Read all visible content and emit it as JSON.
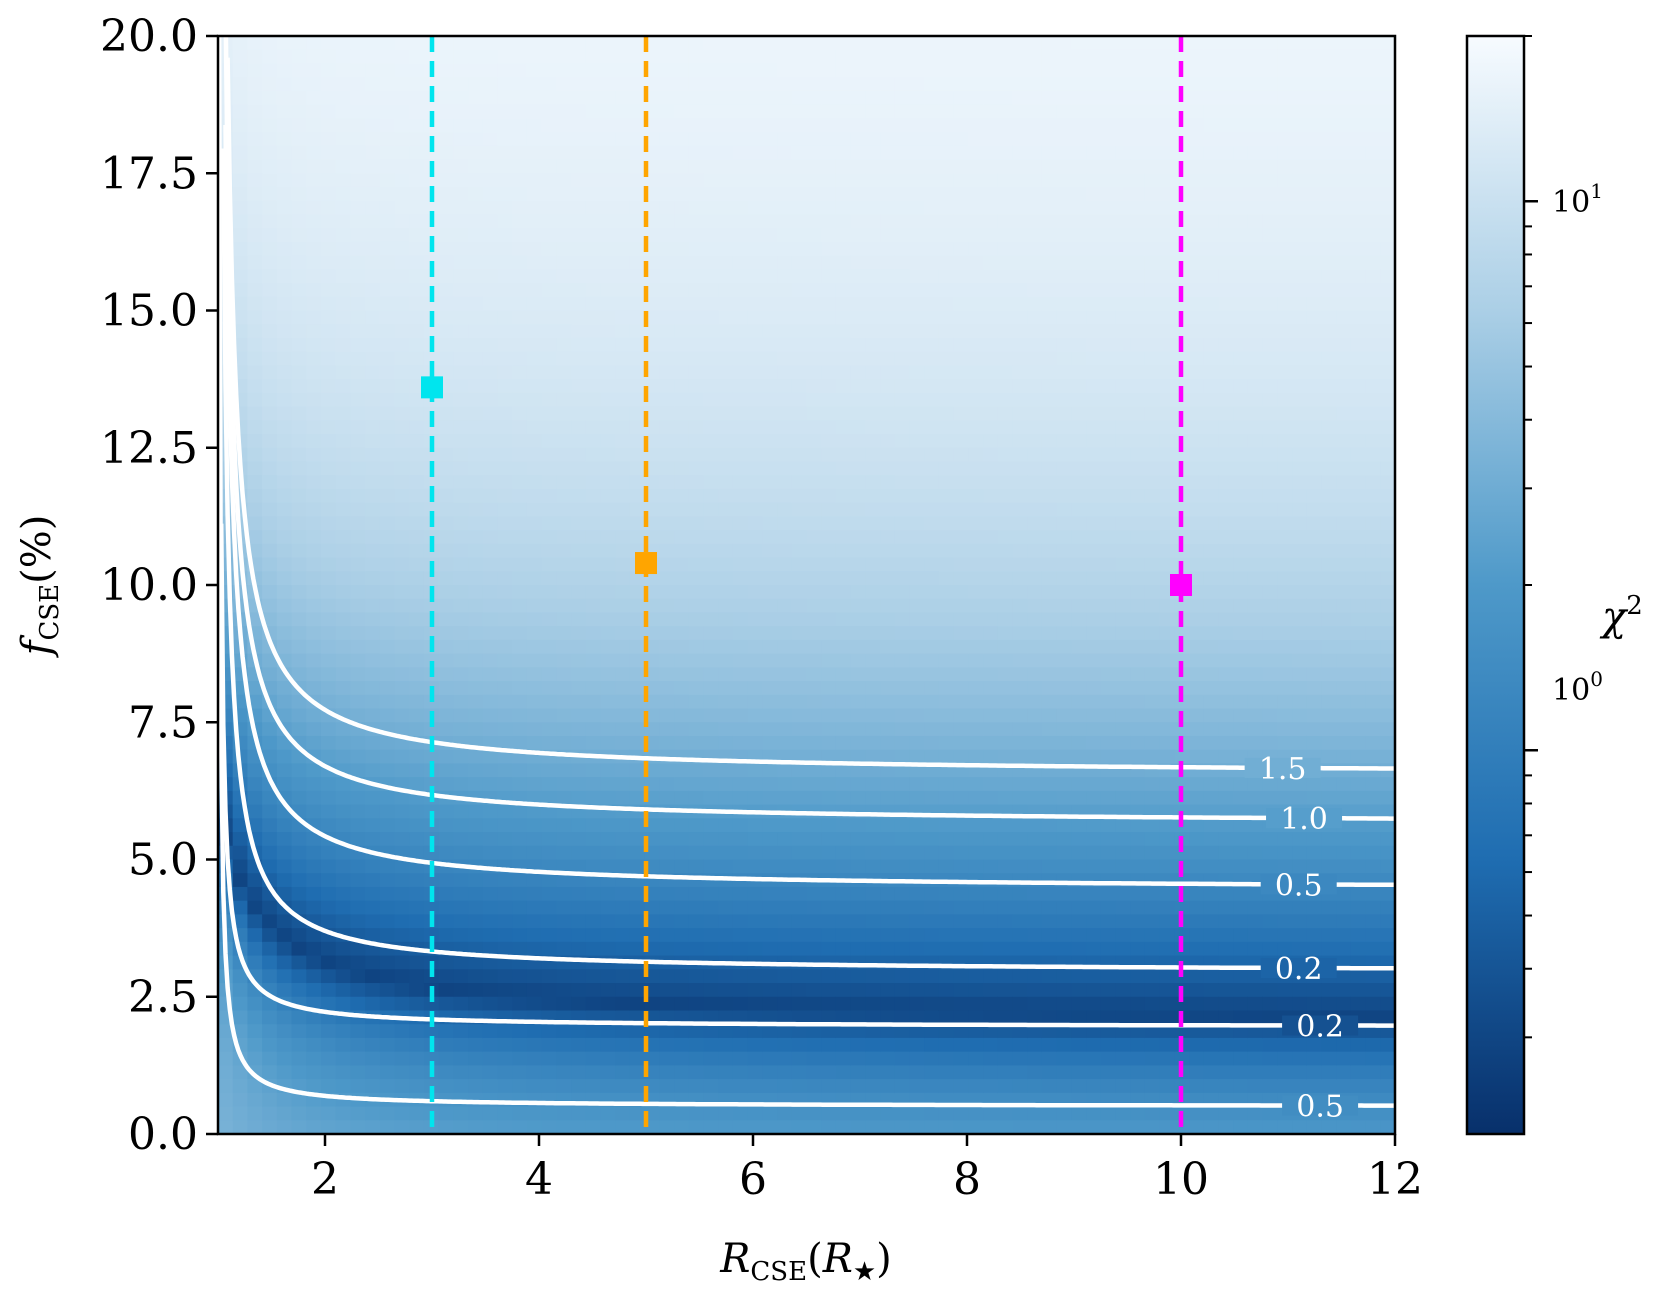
{
  "chart_data": {
    "type": "heatmap",
    "xlabel": "R_CSE(R_★)",
    "ylabel": "f_CSE(%)",
    "xlim": [
      1,
      12
    ],
    "ylim": [
      0,
      20
    ],
    "x_ticks": [
      "2",
      "4",
      "6",
      "8",
      "10",
      "12"
    ],
    "y_ticks": [
      "0.0",
      "2.5",
      "5.0",
      "7.5",
      "10.0",
      "12.5",
      "15.0",
      "17.5",
      "20.0"
    ],
    "colorbar": {
      "label": "χ²",
      "scale": "log",
      "colormap": "Blues_r",
      "range": [
        0.2,
        20
      ],
      "tick_labels": [
        "10¹",
        "10⁰"
      ]
    },
    "contours": [
      {
        "label": "1.5",
        "asymptote": 6.55,
        "k": 4.7
      },
      {
        "label": "1.0",
        "asymptote": 5.65,
        "k": 4.2
      },
      {
        "label": "0.5",
        "asymptote": 4.45,
        "k": 3.9
      },
      {
        "label": "0.2",
        "asymptote": 2.95,
        "k": 3.0
      },
      {
        "label": "0.2",
        "asymptote": 1.95,
        "k": 1.1
      },
      {
        "label": "0.5",
        "asymptote": 0.5,
        "k": 0.78
      }
    ],
    "vertical_lines": [
      {
        "x": 3,
        "color": "#00e5ee"
      },
      {
        "x": 5,
        "color": "#ffa500"
      },
      {
        "x": 10,
        "color": "#ff00ff"
      }
    ],
    "markers": [
      {
        "x": 3,
        "y": 13.6,
        "color": "#00e5ee"
      },
      {
        "x": 5,
        "y": 10.4,
        "color": "#ffa500"
      },
      {
        "x": 10,
        "y": 10.0,
        "color": "#ff00ff"
      }
    ]
  }
}
